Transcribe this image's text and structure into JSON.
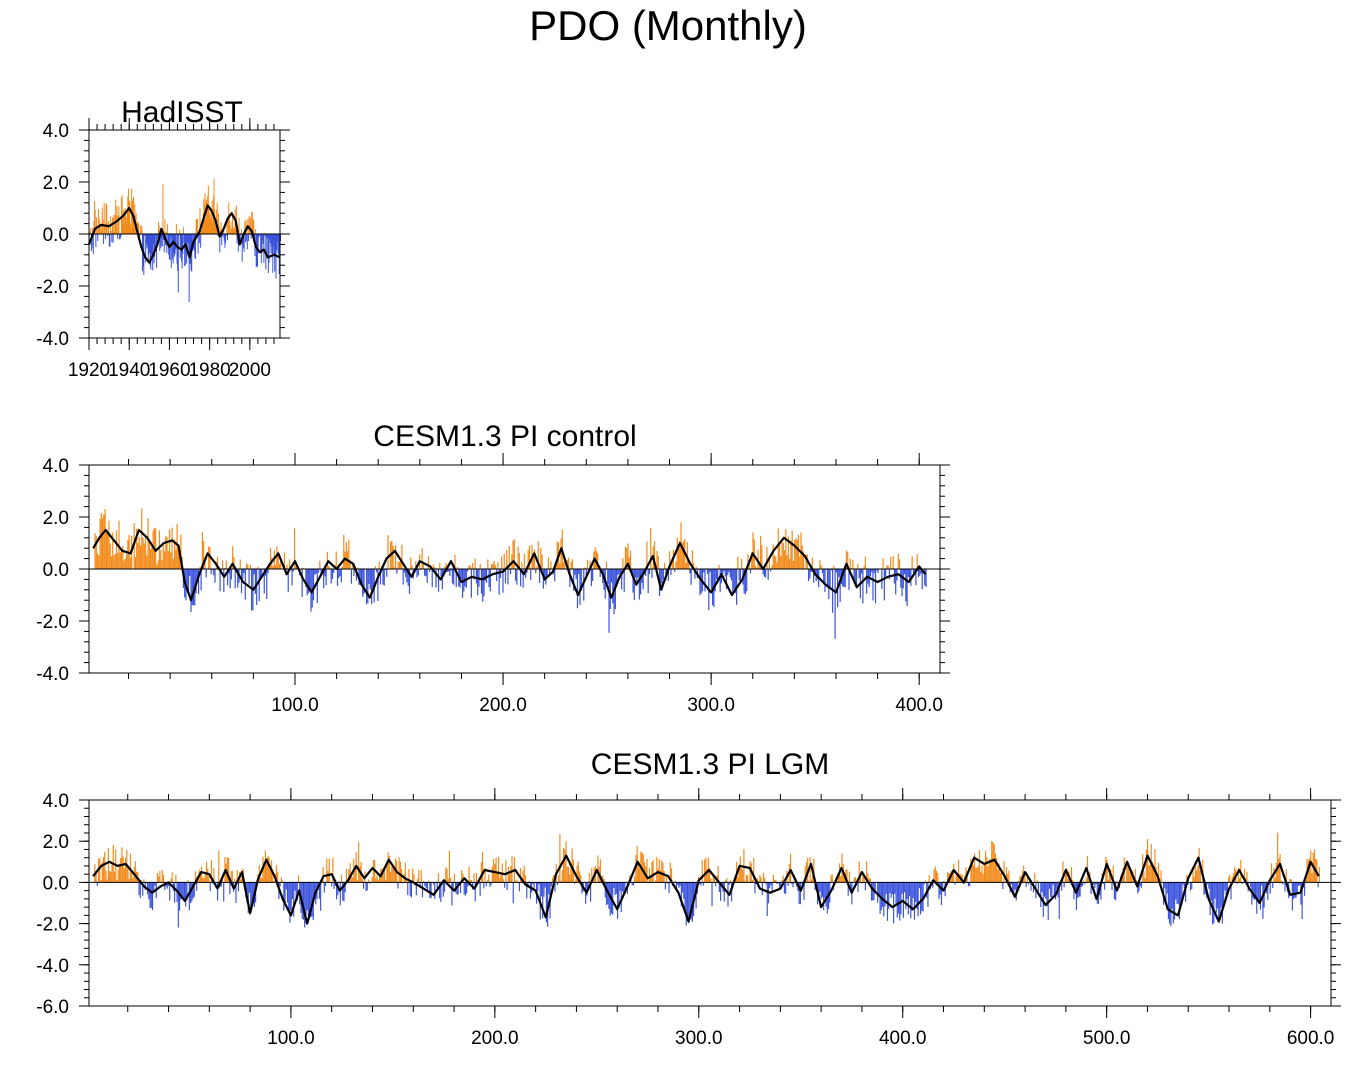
{
  "page": {
    "title": "PDO (Monthly)"
  },
  "colors": {
    "positive": "#f28a1a",
    "negative": "#3a52dc",
    "smooth": "#000000",
    "axis": "#000000"
  },
  "chart_data": [
    {
      "type": "bar",
      "title": "HadISST",
      "xlabel": "",
      "ylabel": "",
      "xlim": [
        1920,
        2015
      ],
      "ylim": [
        -4.0,
        4.0
      ],
      "xticks": [
        1920,
        1940,
        1960,
        1980,
        2000
      ],
      "xtick_labels": [
        "1920",
        "1940",
        "1960",
        "1980",
        "2000"
      ],
      "yticks": [
        4.0,
        2.0,
        0.0,
        -2.0,
        -4.0
      ],
      "ytick_labels": [
        "4.0",
        "2.0",
        "0.0",
        "-2.0",
        "-4.0"
      ],
      "n_bars": 300,
      "series": [
        {
          "name": "monthly PDO (positive)",
          "color": "orange"
        },
        {
          "name": "monthly PDO (negative)",
          "color": "blue"
        },
        {
          "name": "smoothed PDO",
          "color": "black"
        }
      ],
      "smooth": {
        "x": [
          1920,
          1923,
          1926,
          1930,
          1934,
          1937,
          1940,
          1942,
          1944,
          1946,
          1948,
          1950,
          1952,
          1954,
          1956,
          1958,
          1960,
          1962,
          1964,
          1966,
          1968,
          1970,
          1972,
          1975,
          1977,
          1979,
          1981,
          1983,
          1985,
          1987,
          1989,
          1991,
          1993,
          1995,
          1997,
          1999,
          2001,
          2003,
          2005,
          2007,
          2009,
          2012,
          2015
        ],
        "y": [
          -0.4,
          0.2,
          0.35,
          0.3,
          0.5,
          0.7,
          1.0,
          0.7,
          0.1,
          -0.5,
          -0.9,
          -1.1,
          -0.8,
          -0.4,
          0.2,
          -0.2,
          -0.5,
          -0.3,
          -0.5,
          -0.6,
          -0.4,
          -0.9,
          -0.3,
          0.1,
          0.6,
          1.1,
          0.9,
          0.5,
          -0.1,
          0.2,
          0.6,
          0.8,
          0.5,
          -0.4,
          0.0,
          0.3,
          0.1,
          -0.5,
          -0.7,
          -0.6,
          -0.9,
          -0.8,
          -0.9
        ]
      }
    },
    {
      "type": "bar",
      "title": "CESM1.3 PI control",
      "xlabel": "",
      "ylabel": "",
      "xlim": [
        1,
        410
      ],
      "ylim": [
        -4.0,
        4.0
      ],
      "xticks": [
        100,
        200,
        300,
        400
      ],
      "xtick_labels": [
        "100.0",
        "200.0",
        "300.0",
        "400.0"
      ],
      "yticks": [
        4.0,
        2.0,
        0.0,
        -2.0,
        -4.0
      ],
      "ytick_labels": [
        "4.0",
        "2.0",
        "0.0",
        "-2.0",
        "-4.0"
      ],
      "n_bars": 660,
      "series": [
        {
          "name": "monthly PDO (positive)",
          "color": "orange"
        },
        {
          "name": "monthly PDO (negative)",
          "color": "blue"
        },
        {
          "name": "smoothed PDO",
          "color": "black"
        }
      ],
      "smooth": {
        "x": [
          3,
          6,
          9,
          13,
          17,
          21,
          25,
          29,
          33,
          37,
          41,
          44,
          47,
          50,
          54,
          58,
          62,
          66,
          70,
          75,
          80,
          84,
          88,
          92,
          96,
          100,
          104,
          108,
          112,
          116,
          120,
          124,
          128,
          132,
          136,
          140,
          144,
          148,
          152,
          156,
          160,
          165,
          170,
          175,
          180,
          185,
          190,
          195,
          200,
          205,
          210,
          215,
          220,
          224,
          228,
          232,
          236,
          240,
          244,
          248,
          252,
          256,
          260,
          264,
          268,
          272,
          276,
          280,
          285,
          290,
          295,
          300,
          305,
          310,
          315,
          320,
          325,
          330,
          335,
          340,
          345,
          350,
          355,
          360,
          365,
          370,
          375,
          380,
          385,
          390,
          395,
          400,
          403
        ],
        "y": [
          0.8,
          1.2,
          1.5,
          1.1,
          0.7,
          0.6,
          1.5,
          1.2,
          0.7,
          1.0,
          1.1,
          0.9,
          -0.5,
          -1.2,
          -0.2,
          0.6,
          0.2,
          -0.3,
          0.2,
          -0.5,
          -0.8,
          -0.3,
          0.2,
          0.6,
          -0.2,
          0.3,
          -0.4,
          -0.9,
          -0.3,
          0.3,
          0.0,
          0.4,
          0.2,
          -0.6,
          -1.1,
          -0.3,
          0.4,
          0.7,
          0.2,
          -0.3,
          0.3,
          0.1,
          -0.4,
          0.3,
          -0.5,
          -0.3,
          -0.4,
          -0.2,
          -0.1,
          0.3,
          -0.2,
          0.6,
          -0.4,
          -0.1,
          0.8,
          -0.2,
          -1.0,
          -0.3,
          0.4,
          -0.2,
          -1.1,
          -0.3,
          0.2,
          -0.6,
          -0.1,
          0.5,
          -0.8,
          0.1,
          1.0,
          0.2,
          -0.4,
          -0.9,
          -0.2,
          -1.0,
          -0.4,
          0.6,
          0.0,
          0.7,
          1.2,
          0.9,
          0.5,
          -0.2,
          -0.6,
          -0.9,
          0.2,
          -0.7,
          -0.3,
          -0.5,
          -0.3,
          -0.2,
          -0.5,
          0.1,
          -0.2
        ]
      }
    },
    {
      "type": "bar",
      "title": "CESM1.3 PI LGM",
      "xlabel": "",
      "ylabel": "",
      "xlim": [
        1,
        610
      ],
      "ylim": [
        -6.0,
        4.0
      ],
      "xticks": [
        100,
        200,
        300,
        400,
        500,
        600
      ],
      "xtick_labels": [
        "100.0",
        "200.0",
        "300.0",
        "400.0",
        "500.0",
        "600.0"
      ],
      "yticks": [
        4.0,
        2.0,
        0.0,
        -2.0,
        -4.0,
        -6.0
      ],
      "ytick_labels": [
        "4.0",
        "2.0",
        "0.0",
        "-2.0",
        "-4.0",
        "-6.0"
      ],
      "n_bars": 1000,
      "series": [
        {
          "name": "monthly PDO (positive)",
          "color": "orange"
        },
        {
          "name": "monthly PDO (negative)",
          "color": "blue"
        },
        {
          "name": "smoothed PDO",
          "color": "black"
        }
      ],
      "smooth": {
        "x": [
          3,
          7,
          11,
          15,
          19,
          24,
          28,
          32,
          36,
          40,
          44,
          48,
          52,
          56,
          60,
          64,
          68,
          72,
          76,
          80,
          84,
          88,
          92,
          96,
          100,
          104,
          108,
          112,
          116,
          120,
          124,
          128,
          132,
          136,
          140,
          144,
          148,
          152,
          156,
          160,
          165,
          170,
          175,
          180,
          185,
          190,
          195,
          200,
          205,
          210,
          215,
          220,
          225,
          230,
          235,
          240,
          245,
          250,
          255,
          260,
          265,
          270,
          275,
          280,
          285,
          290,
          295,
          300,
          305,
          310,
          315,
          320,
          325,
          330,
          335,
          340,
          345,
          350,
          355,
          360,
          365,
          370,
          375,
          380,
          385,
          390,
          395,
          400,
          405,
          410,
          415,
          420,
          425,
          430,
          435,
          440,
          445,
          450,
          455,
          460,
          465,
          470,
          475,
          480,
          485,
          490,
          495,
          500,
          505,
          510,
          515,
          520,
          525,
          530,
          535,
          540,
          545,
          550,
          555,
          560,
          565,
          570,
          575,
          580,
          585,
          590,
          595,
          600,
          604
        ],
        "y": [
          0.3,
          0.8,
          1.0,
          0.8,
          0.9,
          0.3,
          -0.2,
          -0.5,
          -0.2,
          0.0,
          -0.4,
          -0.9,
          -0.2,
          0.5,
          0.4,
          -0.3,
          0.6,
          -0.3,
          0.5,
          -1.5,
          0.2,
          1.1,
          0.3,
          -0.8,
          -1.6,
          -0.4,
          -2.0,
          -0.5,
          0.3,
          0.4,
          -0.4,
          0.1,
          0.8,
          0.2,
          0.7,
          0.3,
          1.1,
          0.5,
          0.2,
          0.0,
          -0.3,
          -0.6,
          0.1,
          -0.4,
          0.2,
          -0.3,
          0.6,
          0.5,
          0.4,
          0.6,
          -0.1,
          -0.4,
          -1.7,
          0.4,
          1.3,
          0.3,
          -0.5,
          0.6,
          -0.4,
          -1.3,
          -0.2,
          1.0,
          0.2,
          0.5,
          0.3,
          -0.5,
          -1.9,
          0.1,
          0.6,
          0.0,
          -0.6,
          0.8,
          0.7,
          -0.3,
          -0.5,
          -0.3,
          0.6,
          -0.4,
          0.9,
          -1.2,
          -0.4,
          0.7,
          -0.5,
          0.5,
          -0.3,
          -0.8,
          -1.2,
          -0.9,
          -1.3,
          -0.8,
          0.1,
          -0.4,
          0.6,
          0.0,
          1.2,
          0.9,
          1.1,
          0.3,
          -0.7,
          0.5,
          -0.3,
          -1.1,
          -0.6,
          0.6,
          -0.5,
          0.7,
          -0.8,
          0.9,
          -0.4,
          1.0,
          -0.2,
          1.3,
          0.3,
          -1.3,
          -1.6,
          0.2,
          1.2,
          -0.8,
          -1.9,
          -0.3,
          0.6,
          -0.3,
          -1.0,
          0.1,
          0.9,
          -0.6,
          -0.5,
          1.0,
          0.3
        ]
      }
    }
  ]
}
